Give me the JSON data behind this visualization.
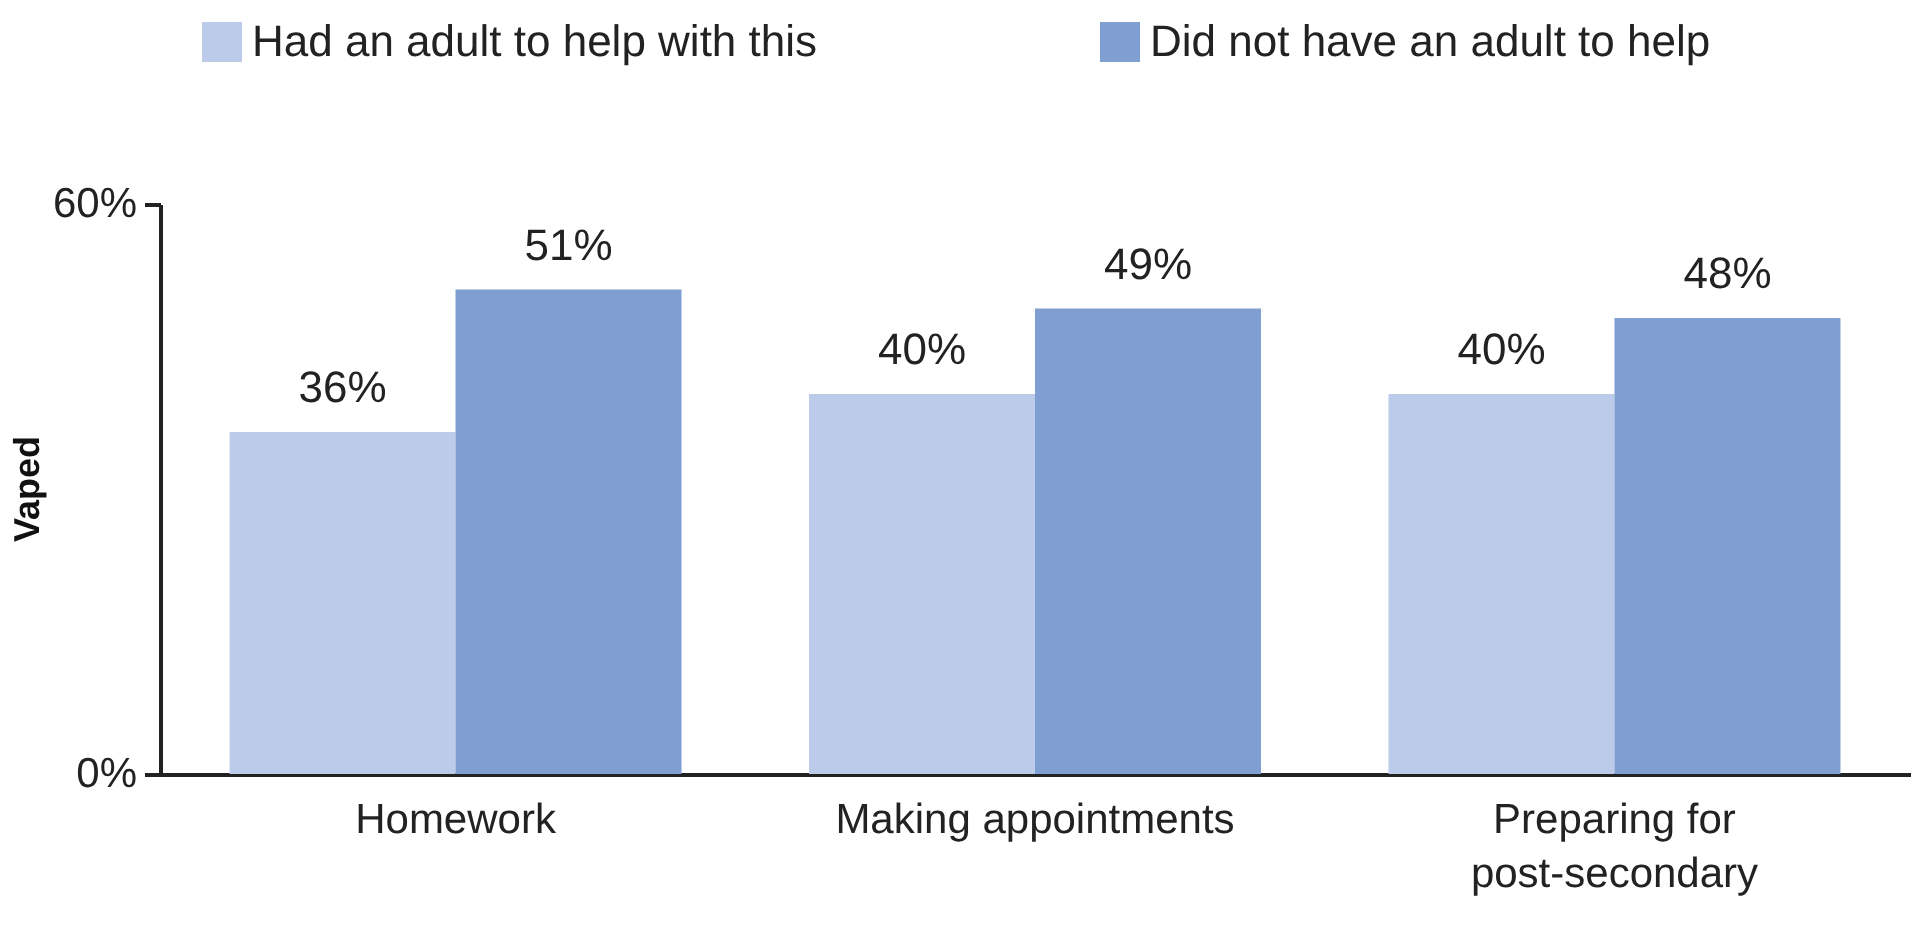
{
  "chart_data": {
    "type": "bar",
    "ylabel": "Vaped",
    "categories": [
      "Homework",
      "Making appointments",
      "Preparing for post-secondary"
    ],
    "series": [
      {
        "name": "Had an adult to help with this",
        "color": "#bccbe9",
        "values": [
          36,
          40,
          40
        ],
        "value_labels": [
          "36%",
          "40%",
          "40%"
        ]
      },
      {
        "name": "Did not have an adult to help",
        "color": "#7f9fd2",
        "values": [
          51,
          49,
          48
        ],
        "value_labels": [
          "51%",
          "49%",
          "48%"
        ]
      }
    ],
    "ylim": [
      0,
      60
    ],
    "yticks": [
      {
        "value": 0,
        "label": "0%"
      },
      {
        "value": 60,
        "label": "60%"
      }
    ],
    "legend": "top"
  }
}
